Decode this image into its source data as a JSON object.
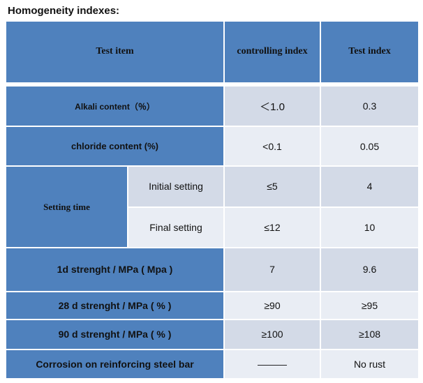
{
  "heading": "Homogeneity indexes:",
  "headers": {
    "test_item": "Test item",
    "controlling_index": "controlling index",
    "test_index": "Test index"
  },
  "rows": [
    {
      "item": "Alkali content（％）",
      "control": "＜1.0",
      "test": "0.3"
    },
    {
      "item": "chloride content (%)",
      "control": "<0.1",
      "test": "0.05"
    },
    {
      "item": "Setting time",
      "sub": [
        {
          "label": "Initial setting",
          "control": "≤5",
          "test": "4"
        },
        {
          "label": "Final setting",
          "control": "≤12",
          "test": "10"
        }
      ]
    },
    {
      "item": "1d strenght / MPa ( Mpa )",
      "control": "7",
      "test": "9.6"
    },
    {
      "item": "28 d strenght / MPa ( % )",
      "control": "≥90",
      "test": "≥95"
    },
    {
      "item": "90 d strenght / MPa ( % )",
      "control": "≥100",
      "test": "≥108"
    },
    {
      "item": "Corrosion on reinforcing steel bar",
      "control": "———",
      "test": "No rust"
    }
  ],
  "colors": {
    "header_blue": "#4f81bd",
    "cell_light": "#d3dae7",
    "cell_lighter": "#e9edf4"
  }
}
